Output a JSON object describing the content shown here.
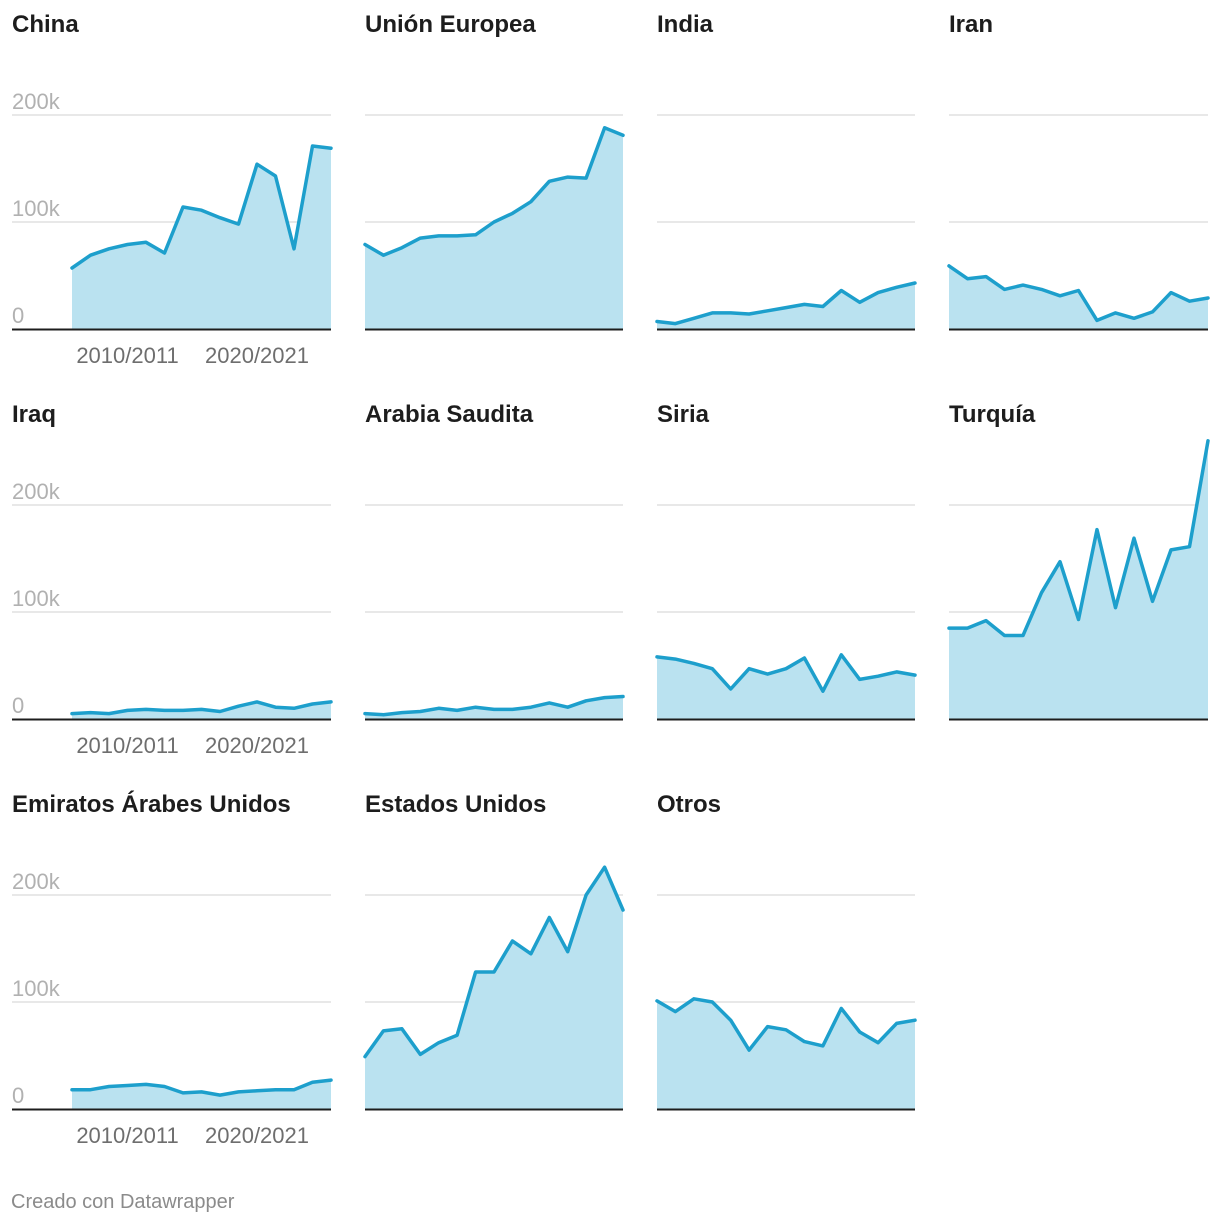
{
  "footer": "Creado con Datawrapper",
  "colors": {
    "line": "#1d9fcc",
    "area": "#bae2f0",
    "grid": "#e1e1e1",
    "baseline": "#1d1d1d"
  },
  "chart_data": {
    "type": "area",
    "layout": "small-multiples",
    "y_ticks": [
      0,
      100000,
      200000
    ],
    "y_tick_labels": [
      "0",
      "100k",
      "200k"
    ],
    "ylim": [
      0,
      200000
    ],
    "x_tick_labels": [
      "2010/2011",
      "2020/2021"
    ],
    "x_tick_indices": [
      3,
      10
    ],
    "grid": true,
    "series": [
      {
        "name": "China",
        "values": [
          57000,
          69000,
          75000,
          79000,
          81000,
          71000,
          114000,
          111000,
          104000,
          98000,
          154000,
          143000,
          75000,
          171000,
          169000
        ]
      },
      {
        "name": "Unión Europea",
        "values": [
          79000,
          69000,
          76000,
          85000,
          87000,
          87000,
          88000,
          100000,
          108000,
          119000,
          138000,
          142000,
          141000,
          188000,
          181000
        ]
      },
      {
        "name": "India",
        "values": [
          7000,
          5000,
          10000,
          15000,
          15000,
          14000,
          17000,
          20000,
          23000,
          21000,
          36000,
          25000,
          34000,
          39000,
          43000
        ]
      },
      {
        "name": "Iran",
        "values": [
          59000,
          47000,
          49000,
          37000,
          41000,
          37000,
          31000,
          36000,
          8000,
          15000,
          10000,
          16000,
          34000,
          26000,
          29000
        ]
      },
      {
        "name": "Iraq",
        "values": [
          5000,
          6000,
          5000,
          8000,
          9000,
          8000,
          8000,
          9000,
          7000,
          12000,
          16000,
          11000,
          10000,
          14000,
          16000
        ]
      },
      {
        "name": "Arabia Saudita",
        "values": [
          5000,
          4000,
          6000,
          7000,
          10000,
          8000,
          11000,
          9000,
          9000,
          11000,
          15000,
          11000,
          17000,
          20000,
          21000
        ]
      },
      {
        "name": "Siria",
        "values": [
          58000,
          56000,
          52000,
          47000,
          28000,
          47000,
          42000,
          47000,
          57000,
          26000,
          60000,
          37000,
          40000,
          44000,
          41000
        ]
      },
      {
        "name": "Turquía",
        "values": [
          85000,
          85000,
          92000,
          78000,
          78000,
          118000,
          147000,
          93000,
          177000,
          104000,
          169000,
          110000,
          158000,
          161000,
          260000
        ]
      },
      {
        "name": "Emiratos Árabes Unidos",
        "values": [
          18000,
          18000,
          21000,
          22000,
          23000,
          21000,
          15000,
          16000,
          13000,
          16000,
          17000,
          18000,
          18000,
          25000,
          27000
        ]
      },
      {
        "name": "Estados Unidos",
        "values": [
          49000,
          73000,
          75000,
          51000,
          62000,
          69000,
          128000,
          128000,
          157000,
          145000,
          179000,
          147000,
          200000,
          226000,
          186000
        ]
      },
      {
        "name": "Otros",
        "values": [
          101000,
          91000,
          103000,
          100000,
          83000,
          55000,
          77000,
          74000,
          63000,
          59000,
          94000,
          72000,
          62000,
          80000,
          83000
        ]
      }
    ]
  }
}
